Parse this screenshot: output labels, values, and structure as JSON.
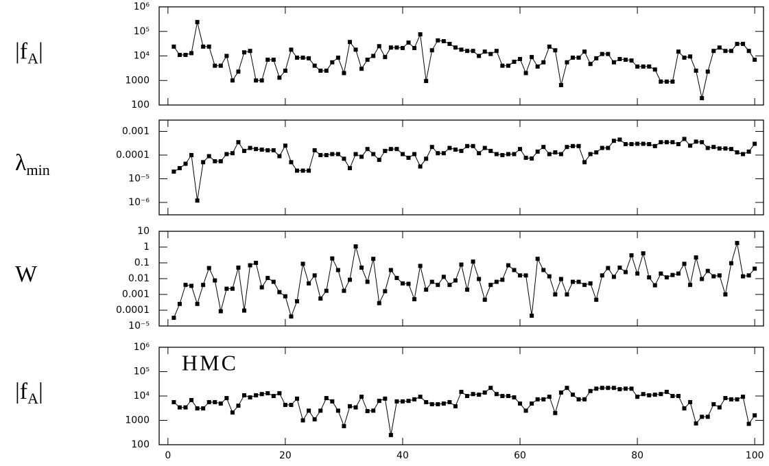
{
  "chart_data": [
    {
      "type": "line",
      "ylabel": {
        "text": "|f",
        "sub": "A",
        "after": "|"
      },
      "log_scale": true,
      "marker": "square",
      "xlim": [
        -1.5,
        101.5
      ],
      "xticks": [
        0,
        20,
        40,
        60,
        80,
        100
      ],
      "xtick_labels": false,
      "ylim": [
        100,
        1000000
      ],
      "yticks": [
        {
          "value": 1000000,
          "label": "10⁶"
        },
        {
          "value": 100000,
          "label": "10⁵"
        },
        {
          "value": 10000,
          "label": "10⁴"
        },
        1000,
        100
      ],
      "x": [
        1,
        2,
        3,
        4,
        5,
        6,
        7,
        8,
        9,
        10,
        11,
        12,
        13,
        14,
        15,
        16,
        17,
        18,
        19,
        20,
        21,
        22,
        23,
        24,
        25,
        26,
        27,
        28,
        29,
        30,
        31,
        32,
        33,
        34,
        35,
        36,
        37,
        38,
        39,
        40,
        41,
        42,
        43,
        44,
        45,
        46,
        47,
        48,
        49,
        50,
        51,
        52,
        53,
        54,
        55,
        56,
        57,
        58,
        59,
        60,
        61,
        62,
        63,
        64,
        65,
        66,
        67,
        68,
        69,
        70,
        71,
        72,
        73,
        74,
        75,
        76,
        77,
        78,
        79,
        80,
        81,
        82,
        83,
        84,
        85,
        86,
        87,
        88,
        89,
        90,
        91,
        92,
        93,
        94,
        95,
        96,
        97,
        98,
        99,
        100
      ],
      "series": [
        {
          "color": "#000000",
          "values": [
            24000,
            11000,
            11000,
            13000,
            240000,
            24000,
            24000,
            4000,
            4000,
            10000,
            1000,
            2300,
            14000,
            16000,
            1000,
            1000,
            7000,
            7000,
            1300,
            2500,
            18000,
            8500,
            8500,
            8000,
            4000,
            2500,
            2500,
            5500,
            8500,
            2000,
            37000,
            18000,
            3000,
            7000,
            10000,
            25000,
            9000,
            22000,
            22000,
            21000,
            35000,
            21000,
            76000,
            950,
            17000,
            43000,
            40000,
            31000,
            22000,
            18000,
            16000,
            16000,
            10000,
            15000,
            12000,
            16000,
            4000,
            4000,
            5800,
            7500,
            2000,
            9000,
            3700,
            5500,
            24000,
            17000,
            650,
            5500,
            8500,
            8500,
            15000,
            4700,
            8000,
            12000,
            12000,
            5500,
            7500,
            7000,
            6500,
            3700,
            3700,
            3700,
            2800,
            900,
            900,
            900,
            15000,
            8500,
            9500,
            2500,
            190,
            2300,
            16000,
            22000,
            16000,
            16000,
            31000,
            31000,
            16000,
            7000
          ]
        }
      ]
    },
    {
      "type": "line",
      "ylabel": {
        "text": "λ",
        "sub": "min"
      },
      "log_scale": true,
      "marker": "square",
      "xlim": [
        -1.5,
        101.5
      ],
      "xticks": [
        0,
        20,
        40,
        60,
        80,
        100
      ],
      "xtick_labels": false,
      "ylim": [
        3e-07,
        0.003
      ],
      "yticks": [
        0.001,
        0.0001,
        {
          "value": 1e-05,
          "label": "10⁻⁵"
        },
        {
          "value": 1e-06,
          "label": "10⁻⁶"
        }
      ],
      "x": [
        1,
        2,
        3,
        4,
        5,
        6,
        7,
        8,
        9,
        10,
        11,
        12,
        13,
        14,
        15,
        16,
        17,
        18,
        19,
        20,
        21,
        22,
        23,
        24,
        25,
        26,
        27,
        28,
        29,
        30,
        31,
        32,
        33,
        34,
        35,
        36,
        37,
        38,
        39,
        40,
        41,
        42,
        43,
        44,
        45,
        46,
        47,
        48,
        49,
        50,
        51,
        52,
        53,
        54,
        55,
        56,
        57,
        58,
        59,
        60,
        61,
        62,
        63,
        64,
        65,
        66,
        67,
        68,
        69,
        70,
        71,
        72,
        73,
        74,
        75,
        76,
        77,
        78,
        79,
        80,
        81,
        82,
        83,
        84,
        85,
        86,
        87,
        88,
        89,
        90,
        91,
        92,
        93,
        94,
        95,
        96,
        97,
        98,
        99,
        100
      ],
      "series": [
        {
          "color": "#000000",
          "values": [
            2e-05,
            2.8e-05,
            4.3e-05,
            0.0001,
            1.2e-06,
            5e-05,
            9e-05,
            5.5e-05,
            5.5e-05,
            0.00011,
            0.00012,
            0.00035,
            0.00015,
            0.0002,
            0.00018,
            0.00017,
            0.00016,
            0.00016,
            9e-05,
            0.00025,
            5e-05,
            2.2e-05,
            2.2e-05,
            2.2e-05,
            0.00016,
            0.0001,
            0.0001,
            0.00011,
            0.00011,
            7e-05,
            2.8e-05,
            0.00011,
            8.5e-05,
            0.00018,
            0.00011,
            6.3e-05,
            0.00015,
            0.00018,
            0.00018,
            0.00011,
            7.7e-05,
            0.00011,
            3.3e-05,
            7e-05,
            0.00022,
            0.00012,
            0.00012,
            0.0002,
            0.00017,
            0.00015,
            0.00024,
            0.00024,
            0.00012,
            0.0002,
            0.00015,
            0.00011,
            0.0001,
            0.00011,
            0.00011,
            0.00018,
            7.7e-05,
            7.2e-05,
            0.00014,
            0.00022,
            0.00011,
            0.00013,
            0.00011,
            0.00022,
            0.00024,
            0.00024,
            5e-05,
            0.00011,
            0.00013,
            0.0002,
            0.0002,
            0.0004,
            0.00045,
            0.00029,
            0.00029,
            0.0003,
            0.0003,
            0.00029,
            0.00024,
            0.00035,
            0.00035,
            0.00035,
            0.00029,
            0.00048,
            0.00025,
            0.00037,
            0.00035,
            0.0002,
            0.00022,
            0.00019,
            0.00019,
            0.00018,
            0.00013,
            0.00011,
            0.00014,
            0.0003
          ]
        }
      ]
    },
    {
      "type": "line",
      "ylabel": {
        "text": "W"
      },
      "log_scale": true,
      "marker": "square",
      "xlim": [
        -1.5,
        101.5
      ],
      "xticks": [
        0,
        20,
        40,
        60,
        80,
        100
      ],
      "xtick_labels": false,
      "ylim": [
        1e-05,
        10
      ],
      "yticks": [
        10,
        1,
        0.1,
        0.01,
        0.001,
        0.0001,
        {
          "value": 1e-05,
          "label": "10⁻⁵"
        }
      ],
      "x": [
        1,
        2,
        3,
        4,
        5,
        6,
        7,
        8,
        9,
        10,
        11,
        12,
        13,
        14,
        15,
        16,
        17,
        18,
        19,
        20,
        21,
        22,
        23,
        24,
        25,
        26,
        27,
        28,
        29,
        30,
        31,
        32,
        33,
        34,
        35,
        36,
        37,
        38,
        39,
        40,
        41,
        42,
        43,
        44,
        45,
        46,
        47,
        48,
        49,
        50,
        51,
        52,
        53,
        54,
        55,
        56,
        57,
        58,
        59,
        60,
        61,
        62,
        63,
        64,
        65,
        66,
        67,
        68,
        69,
        70,
        71,
        72,
        73,
        74,
        75,
        76,
        77,
        78,
        79,
        80,
        81,
        82,
        83,
        84,
        85,
        86,
        87,
        88,
        89,
        90,
        91,
        92,
        93,
        94,
        95,
        96,
        97,
        98,
        99,
        100
      ],
      "series": [
        {
          "color": "#000000",
          "values": [
            3.3e-05,
            0.00025,
            0.004,
            0.0035,
            0.00025,
            0.004,
            0.047,
            0.0077,
            8.6e-05,
            0.0023,
            0.0023,
            0.05,
            9.5e-05,
            0.07,
            0.1,
            0.0028,
            0.011,
            0.0063,
            0.0014,
            0.00076,
            4e-05,
            0.00037,
            0.087,
            0.005,
            0.016,
            0.00055,
            0.0017,
            0.19,
            0.035,
            0.0017,
            0.0085,
            1.1,
            0.05,
            0.0063,
            0.18,
            0.00028,
            0.0016,
            0.035,
            0.011,
            0.005,
            0.0047,
            0.0005,
            0.064,
            0.002,
            0.0063,
            0.004,
            0.013,
            0.004,
            0.0077,
            0.078,
            0.002,
            0.12,
            0.0095,
            0.00046,
            0.004,
            0.0063,
            0.0085,
            0.07,
            0.035,
            0.016,
            0.016,
            4.5e-05,
            0.18,
            0.035,
            0.014,
            0.001,
            0.0095,
            0.001,
            0.0063,
            0.0063,
            0.004,
            0.005,
            0.00046,
            0.016,
            0.047,
            0.013,
            0.05,
            0.026,
            0.3,
            0.021,
            0.4,
            0.012,
            0.0038,
            0.021,
            0.012,
            0.017,
            0.021,
            0.087,
            0.004,
            0.22,
            0.0095,
            0.031,
            0.014,
            0.016,
            0.001,
            0.095,
            1.8,
            0.014,
            0.016,
            0.043
          ]
        }
      ]
    },
    {
      "type": "line",
      "ylabel": {
        "text": "|f",
        "sub": "A",
        "after": "|"
      },
      "annotation": "HMC",
      "log_scale": true,
      "marker": "square",
      "xlim": [
        -1.5,
        101.5
      ],
      "xticks": [
        0,
        20,
        40,
        60,
        80,
        100
      ],
      "xtick_labels": true,
      "ylim": [
        100,
        1000000
      ],
      "yticks": [
        {
          "value": 1000000,
          "label": "10⁶"
        },
        {
          "value": 100000,
          "label": "10⁵"
        },
        {
          "value": 10000,
          "label": "10⁴"
        },
        1000,
        100
      ],
      "x": [
        1,
        2,
        3,
        4,
        5,
        6,
        7,
        8,
        9,
        10,
        11,
        12,
        13,
        14,
        15,
        16,
        17,
        18,
        19,
        20,
        21,
        22,
        23,
        24,
        25,
        26,
        27,
        28,
        29,
        30,
        31,
        32,
        33,
        34,
        35,
        36,
        37,
        38,
        39,
        40,
        41,
        42,
        43,
        44,
        45,
        46,
        47,
        48,
        49,
        50,
        51,
        52,
        53,
        54,
        55,
        56,
        57,
        58,
        59,
        60,
        61,
        62,
        63,
        64,
        65,
        66,
        67,
        68,
        69,
        70,
        71,
        72,
        73,
        74,
        75,
        76,
        77,
        78,
        79,
        80,
        81,
        82,
        83,
        84,
        85,
        86,
        87,
        88,
        89,
        90,
        91,
        92,
        93,
        94,
        95,
        96,
        97,
        98,
        99,
        100
      ],
      "series": [
        {
          "color": "#000000",
          "values": [
            5600,
            3400,
            3400,
            6800,
            3100,
            3100,
            5600,
            5600,
            4900,
            8200,
            2100,
            4000,
            10700,
            8800,
            10700,
            12000,
            13000,
            10000,
            13000,
            4300,
            4300,
            7800,
            1000,
            2500,
            1100,
            2500,
            8200,
            6000,
            2500,
            580,
            3800,
            3400,
            9300,
            2400,
            2500,
            6300,
            7800,
            250,
            6000,
            6000,
            6300,
            7300,
            9300,
            5600,
            4600,
            4600,
            4900,
            5600,
            3800,
            14800,
            10000,
            12000,
            11300,
            13900,
            21500,
            12000,
            10000,
            10000,
            8800,
            4900,
            2500,
            4900,
            7300,
            7300,
            9300,
            2000,
            13900,
            21500,
            11300,
            7300,
            7300,
            16000,
            20000,
            21500,
            21500,
            21500,
            19000,
            20000,
            20000,
            9300,
            12000,
            10700,
            11300,
            12000,
            14800,
            10000,
            10000,
            3100,
            5600,
            750,
            1400,
            1400,
            4600,
            3400,
            8200,
            7300,
            7300,
            9300,
            720,
            1600
          ]
        }
      ]
    }
  ]
}
